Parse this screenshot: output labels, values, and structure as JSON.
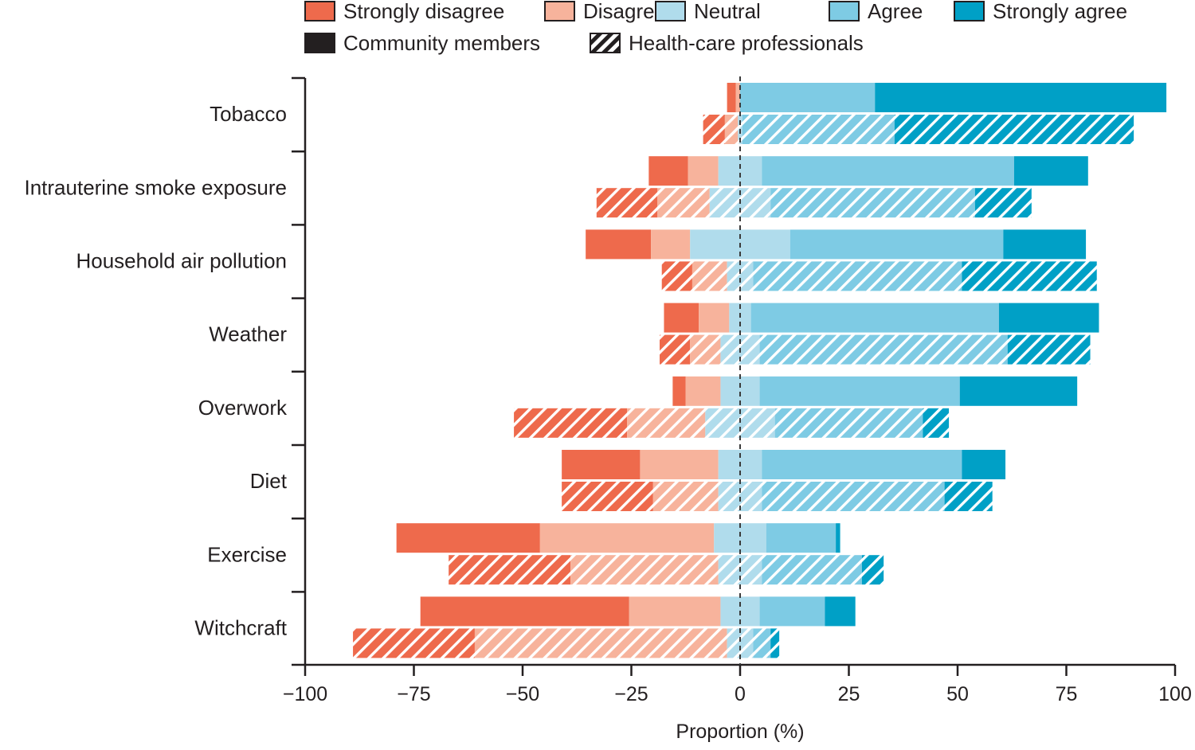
{
  "chart_data": {
    "type": "bar",
    "subtype": "diverging-stacked-horizontal",
    "title": "",
    "xlabel": "Proportion (%)",
    "ylabel": "",
    "xlim": [
      -100,
      100
    ],
    "x_ticks": [
      -100,
      -75,
      -50,
      -25,
      0,
      25,
      50,
      75,
      100
    ],
    "x_tick_labels": [
      "−100",
      "−75",
      "−50",
      "−25",
      "0",
      "25",
      "50",
      "75",
      "100"
    ],
    "zero_reference_line": "dashed",
    "levels": [
      {
        "key": "strongly_disagree",
        "label": "Strongly disagree",
        "color": "#ee6a4c",
        "side": "negative"
      },
      {
        "key": "disagree",
        "label": "Disagree",
        "color": "#f7b39c",
        "side": "negative"
      },
      {
        "key": "neutral",
        "label": "Neutral",
        "color": "#b0dcec",
        "side": "split"
      },
      {
        "key": "agree",
        "label": "Agree",
        "color": "#7ecbe4",
        "side": "positive"
      },
      {
        "key": "strongly_agree",
        "label": "Strongly agree",
        "color": "#00a0c6",
        "side": "positive"
      }
    ],
    "groups": [
      {
        "key": "community",
        "label": "Community members",
        "pattern": "solid"
      },
      {
        "key": "professionals",
        "label": "Health-care professionals",
        "pattern": "hatched"
      }
    ],
    "categories": [
      "Tobacco",
      "Intrauterine smoke exposure",
      "Household air pollution",
      "Weather",
      "Overwork",
      "Diet",
      "Exercise",
      "Witchcraft"
    ],
    "series": [
      {
        "group": "community",
        "name": "Community members",
        "strongly_disagree": [
          2,
          9,
          15,
          8,
          3,
          18,
          33,
          48
        ],
        "disagree": [
          1,
          7,
          9,
          7,
          8,
          18,
          40,
          21
        ],
        "neutral": [
          0,
          10,
          23,
          5,
          9,
          10,
          12,
          9
        ],
        "agree": [
          31,
          58,
          49,
          57,
          46,
          46,
          16,
          15
        ],
        "strongly_agree": [
          67,
          17,
          19,
          23,
          27,
          10,
          1,
          7
        ]
      },
      {
        "group": "professionals",
        "name": "Health-care professionals",
        "strongly_disagree": [
          5,
          14,
          7,
          7,
          26,
          21,
          28,
          28
        ],
        "disagree": [
          3,
          12,
          8,
          7,
          18,
          15,
          34,
          58
        ],
        "neutral": [
          1,
          14,
          6,
          9,
          16,
          10,
          10,
          6
        ],
        "agree": [
          35,
          47,
          48,
          57,
          34,
          42,
          23,
          4
        ],
        "strongly_agree": [
          55,
          13,
          31,
          19,
          6,
          11,
          5,
          2
        ]
      }
    ]
  }
}
